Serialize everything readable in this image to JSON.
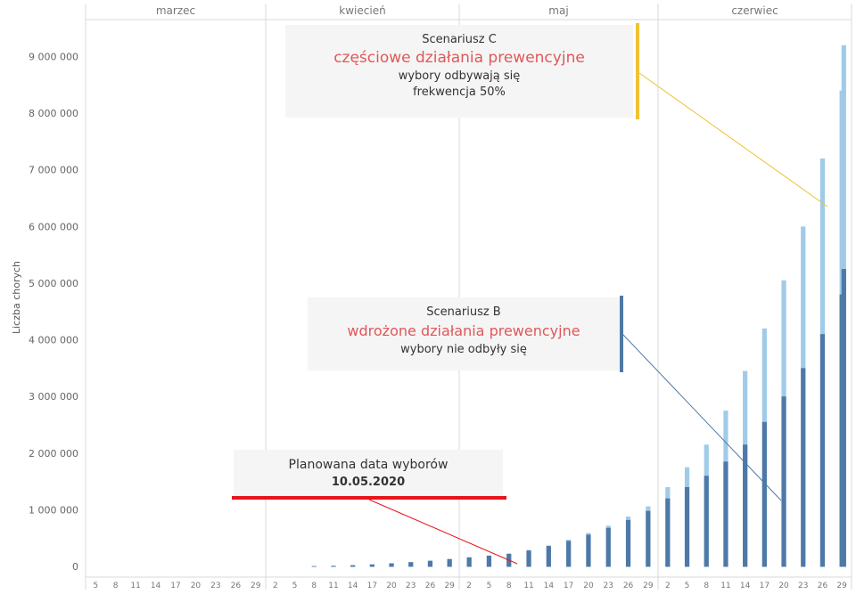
{
  "chart_data": {
    "type": "bar",
    "ylabel": "Liczba chorych",
    "xlabel": "",
    "ylim": [
      0,
      9500000
    ],
    "yticks": [
      0,
      1000000,
      2000000,
      3000000,
      4000000,
      5000000,
      6000000,
      7000000,
      8000000,
      9000000
    ],
    "ytick_labels": [
      "0",
      "1 000 000",
      "2 000 000",
      "3 000 000",
      "4 000 000",
      "5 000 000",
      "6 000 000",
      "7 000 000",
      "8 000 000",
      "9 000 000"
    ],
    "months": [
      {
        "name": "marzec",
        "days": [
          5,
          8,
          11,
          14,
          17,
          20,
          23,
          26,
          29
        ]
      },
      {
        "name": "kwiecień",
        "days": [
          2,
          5,
          8,
          11,
          14,
          17,
          20,
          23,
          26,
          29
        ]
      },
      {
        "name": "maj",
        "days": [
          2,
          5,
          8,
          11,
          14,
          17,
          20,
          23,
          26,
          29
        ]
      },
      {
        "name": "czerwiec",
        "days": [
          2,
          5,
          8,
          11,
          14,
          17,
          20,
          23,
          26,
          29
        ]
      }
    ],
    "series": [
      {
        "name": "Scenariusz B",
        "color": "#4e79a7",
        "x": [
          "2020-04-08",
          "2020-04-11",
          "2020-04-14",
          "2020-04-17",
          "2020-04-20",
          "2020-04-23",
          "2020-04-26",
          "2020-04-29",
          "2020-05-02",
          "2020-05-05",
          "2020-05-08",
          "2020-05-11",
          "2020-05-14",
          "2020-05-17",
          "2020-05-20",
          "2020-05-23",
          "2020-05-26",
          "2020-05-29",
          "2020-06-02",
          "2020-06-05",
          "2020-06-08",
          "2020-06-11",
          "2020-06-14",
          "2020-06-17",
          "2020-06-20",
          "2020-06-23",
          "2020-06-26",
          "2020-06-29",
          "2020-06-30"
        ],
        "y": [
          5000,
          10000,
          20000,
          35000,
          55000,
          75000,
          100000,
          130000,
          160000,
          190000,
          220000,
          280000,
          360000,
          450000,
          560000,
          680000,
          820000,
          980000,
          1200000,
          1400000,
          1600000,
          1850000,
          2150000,
          2550000,
          3000000,
          3500000,
          4100000,
          4800000,
          5250000
        ]
      },
      {
        "name": "Scenariusz C",
        "color": "#a0cbe8",
        "x": [
          "2020-04-08",
          "2020-04-11",
          "2020-04-14",
          "2020-04-17",
          "2020-04-20",
          "2020-04-23",
          "2020-04-26",
          "2020-04-29",
          "2020-05-02",
          "2020-05-05",
          "2020-05-08",
          "2020-05-11",
          "2020-05-14",
          "2020-05-17",
          "2020-05-20",
          "2020-05-23",
          "2020-05-26",
          "2020-05-29",
          "2020-06-02",
          "2020-06-05",
          "2020-06-08",
          "2020-06-11",
          "2020-06-14",
          "2020-06-17",
          "2020-06-20",
          "2020-06-23",
          "2020-06-26",
          "2020-06-29",
          "2020-06-30"
        ],
        "y": [
          5000,
          10000,
          20000,
          35000,
          55000,
          75000,
          100000,
          130000,
          160000,
          190000,
          230000,
          290000,
          370000,
          470000,
          590000,
          720000,
          880000,
          1060000,
          1400000,
          1750000,
          2150000,
          2750000,
          3450000,
          4200000,
          5050000,
          6000000,
          7200000,
          8400000,
          9200000
        ]
      }
    ],
    "annotations": [
      {
        "key": "scenario_c",
        "title": "Scenariusz C",
        "subtitle": "częściowe działania prewencyjne",
        "lines": [
          "wybory odbywają się",
          "frekwencja 50%"
        ],
        "color": "#f1c232"
      },
      {
        "key": "scenario_b",
        "title": "Scenariusz B",
        "subtitle": "wdrożone działania prewencyjne",
        "lines": [
          "wybory nie odbyły się"
        ],
        "color": "#4e79a7"
      },
      {
        "key": "election",
        "title": "Planowana data wyborów",
        "lines": [
          "10.05.2020"
        ],
        "color": "#e8141b"
      }
    ]
  },
  "colors": {
    "subtitle": "#e05759",
    "axis_text": "#777777",
    "grid": "#d9d9d9"
  }
}
